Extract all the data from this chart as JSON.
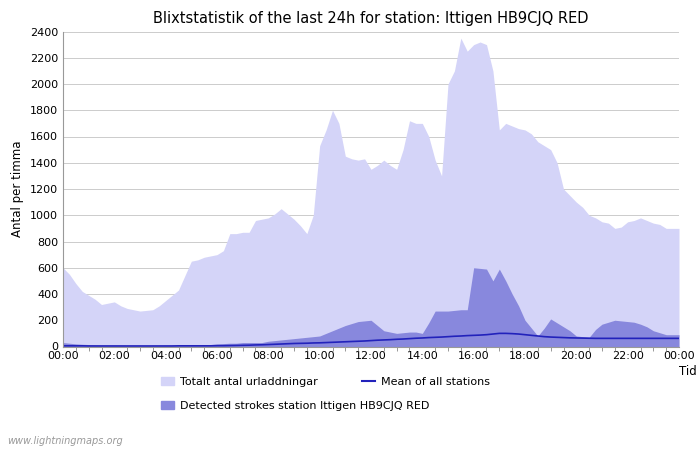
{
  "title": "Blixtstatistik of the last 24h for station: Ittigen HB9CJQ RED",
  "xlabel": "Tid",
  "ylabel": "Antal per timma",
  "xlim": [
    0,
    24
  ],
  "ylim": [
    0,
    2400
  ],
  "yticks": [
    0,
    200,
    400,
    600,
    800,
    1000,
    1200,
    1400,
    1600,
    1800,
    2000,
    2200,
    2400
  ],
  "xtick_labels": [
    "00:00",
    "02:00",
    "04:00",
    "06:00",
    "08:00",
    "10:00",
    "12:00",
    "14:00",
    "16:00",
    "18:00",
    "20:00",
    "22:00",
    "00:00"
  ],
  "watermark": "www.lightningmaps.org",
  "bg_color": "#ffffff",
  "grid_color": "#cccccc",
  "total_color": "#d4d4f8",
  "detected_color": "#8888dd",
  "mean_color": "#2222bb",
  "legend_labels": [
    "Totalt antal urladdningar",
    "Detected strokes station Ittigen HB9CJQ RED",
    "Mean of all stations"
  ],
  "x": [
    0.0,
    0.25,
    0.5,
    0.75,
    1.0,
    1.25,
    1.5,
    1.75,
    2.0,
    2.25,
    2.5,
    2.75,
    3.0,
    3.25,
    3.5,
    3.75,
    4.0,
    4.25,
    4.5,
    4.75,
    5.0,
    5.25,
    5.5,
    5.75,
    6.0,
    6.25,
    6.5,
    6.75,
    7.0,
    7.25,
    7.5,
    7.75,
    8.0,
    8.25,
    8.5,
    8.75,
    9.0,
    9.25,
    9.5,
    9.75,
    10.0,
    10.25,
    10.5,
    10.75,
    11.0,
    11.25,
    11.5,
    11.75,
    12.0,
    12.25,
    12.5,
    12.75,
    13.0,
    13.25,
    13.5,
    13.75,
    14.0,
    14.25,
    14.5,
    14.75,
    15.0,
    15.25,
    15.5,
    15.75,
    16.0,
    16.25,
    16.5,
    16.75,
    17.0,
    17.25,
    17.5,
    17.75,
    18.0,
    18.25,
    18.5,
    18.75,
    19.0,
    19.25,
    19.5,
    19.75,
    20.0,
    20.25,
    20.5,
    20.75,
    21.0,
    21.25,
    21.5,
    21.75,
    22.0,
    22.25,
    22.5,
    22.75,
    23.0,
    23.25,
    23.5,
    23.75,
    24.0
  ],
  "total": [
    600,
    550,
    480,
    420,
    390,
    360,
    320,
    330,
    340,
    310,
    290,
    280,
    270,
    275,
    280,
    310,
    350,
    390,
    430,
    540,
    650,
    660,
    680,
    690,
    700,
    730,
    860,
    860,
    870,
    870,
    960,
    970,
    980,
    1010,
    1050,
    1010,
    970,
    920,
    860,
    1000,
    1530,
    1650,
    1800,
    1700,
    1450,
    1430,
    1420,
    1430,
    1350,
    1380,
    1420,
    1380,
    1350,
    1500,
    1720,
    1700,
    1700,
    1600,
    1420,
    1300,
    2000,
    2100,
    2350,
    2250,
    2300,
    2320,
    2300,
    2100,
    1650,
    1700,
    1680,
    1660,
    1650,
    1620,
    1560,
    1530,
    1500,
    1400,
    1200,
    1150,
    1100,
    1060,
    1000,
    980,
    950,
    940,
    900,
    910,
    950,
    960,
    980,
    960,
    940,
    930,
    900,
    900,
    900
  ],
  "detected": [
    30,
    25,
    20,
    17,
    15,
    12,
    10,
    10,
    10,
    9,
    8,
    8,
    8,
    8,
    8,
    9,
    10,
    10,
    10,
    12,
    15,
    15,
    15,
    15,
    20,
    22,
    25,
    25,
    30,
    30,
    30,
    30,
    40,
    45,
    50,
    55,
    60,
    65,
    70,
    75,
    80,
    100,
    120,
    140,
    160,
    175,
    190,
    195,
    200,
    160,
    120,
    110,
    100,
    105,
    110,
    110,
    100,
    180,
    270,
    270,
    270,
    275,
    280,
    280,
    600,
    595,
    590,
    500,
    590,
    500,
    400,
    310,
    200,
    140,
    80,
    140,
    210,
    180,
    150,
    120,
    80,
    75,
    70,
    130,
    170,
    185,
    200,
    195,
    190,
    185,
    170,
    150,
    120,
    105,
    90,
    90,
    90
  ],
  "mean": [
    5,
    5,
    5,
    5,
    4,
    4,
    4,
    4,
    4,
    4,
    4,
    4,
    4,
    4,
    4,
    4,
    4,
    4,
    5,
    5,
    5,
    5,
    5,
    5,
    6,
    6,
    7,
    8,
    9,
    10,
    12,
    13,
    15,
    17,
    19,
    21,
    23,
    24,
    25,
    27,
    28,
    30,
    32,
    34,
    36,
    38,
    40,
    42,
    45,
    48,
    50,
    52,
    55,
    57,
    60,
    63,
    65,
    68,
    70,
    72,
    75,
    78,
    80,
    83,
    85,
    87,
    90,
    95,
    100,
    100,
    98,
    95,
    90,
    85,
    80,
    75,
    72,
    70,
    68,
    66,
    65,
    64,
    63,
    62,
    62,
    62,
    62,
    62,
    62,
    62,
    62,
    62,
    62,
    62,
    62,
    62,
    62
  ]
}
